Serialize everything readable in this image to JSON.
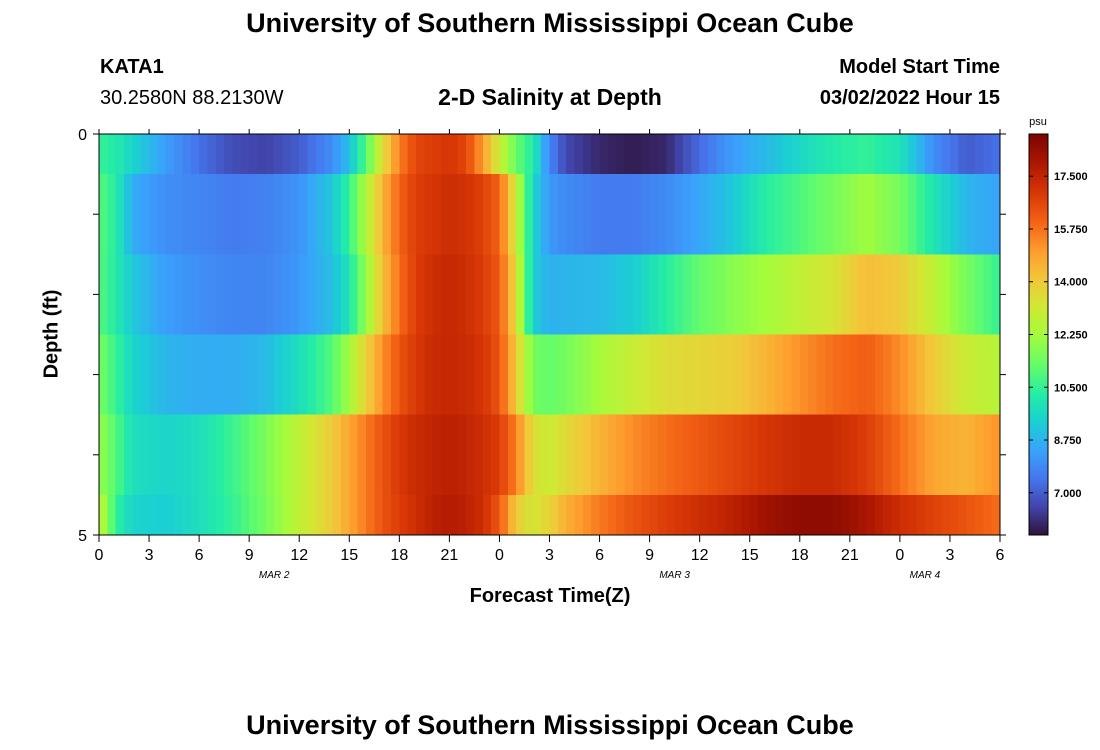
{
  "page": {
    "title": "University of Southern Mississippi Ocean Cube",
    "footer_title": "University of Southern Mississippi Ocean Cube"
  },
  "header": {
    "station": "KATA1",
    "coords": "30.2580N  88.2130W",
    "subtitle": "2-D Salinity at Depth",
    "model_start_label": "Model Start Time",
    "model_start_value": "03/02/2022 Hour 15"
  },
  "chart_data": {
    "type": "heatmap",
    "title": "2-D Salinity at Depth",
    "xlabel": "Forecast Time(Z)",
    "ylabel": "Depth (ft)",
    "x_tick_labels": [
      "0",
      "3",
      "6",
      "9",
      "12",
      "15",
      "18",
      "21",
      "0",
      "3",
      "6",
      "9",
      "12",
      "15",
      "18",
      "21",
      "0",
      "3",
      "6"
    ],
    "date_labels": [
      {
        "text": "MAR 2",
        "at_tick": 3.5
      },
      {
        "text": "MAR 3",
        "at_tick": 11.5
      },
      {
        "text": "MAR 4",
        "at_tick": 16.5
      }
    ],
    "y_tick_labels": [
      "0",
      "5"
    ],
    "ylim": [
      0,
      5
    ],
    "x_hours": [
      0,
      54
    ],
    "colorbar": {
      "unit": "psu",
      "tick_labels": [
        "7.000",
        "8.750",
        "10.500",
        "12.250",
        "14.000",
        "15.750",
        "17.500"
      ],
      "tick_values": [
        7.0,
        8.75,
        10.5,
        12.25,
        14.0,
        15.75,
        17.5
      ],
      "range": [
        5.6,
        18.9
      ]
    },
    "rows": [
      {
        "depth_range": [
          0,
          0.5
        ],
        "keyframes": [
          [
            0,
            10.5
          ],
          [
            1,
            10.2
          ],
          [
            2,
            9.5
          ],
          [
            4,
            8.3
          ],
          [
            6,
            7.4
          ],
          [
            8,
            6.7
          ],
          [
            10,
            6.5
          ],
          [
            12,
            7.0
          ],
          [
            14,
            8.0
          ],
          [
            15,
            9.0
          ],
          [
            16,
            11.0
          ],
          [
            17,
            13.5
          ],
          [
            18,
            15.5
          ],
          [
            19,
            16.6
          ],
          [
            20,
            16.8
          ],
          [
            21,
            17.0
          ],
          [
            22,
            16.6
          ],
          [
            23,
            15.0
          ],
          [
            24,
            13.0
          ],
          [
            25,
            11.3
          ],
          [
            26,
            10.2
          ],
          [
            27,
            7.8
          ],
          [
            28,
            6.6
          ],
          [
            30,
            6.0
          ],
          [
            32,
            5.8
          ],
          [
            34,
            6.0
          ],
          [
            36,
            7.3
          ],
          [
            38,
            8.3
          ],
          [
            40,
            8.9
          ],
          [
            42,
            9.6
          ],
          [
            44,
            10.2
          ],
          [
            46,
            10.5
          ],
          [
            48,
            9.9
          ],
          [
            50,
            8.0
          ],
          [
            52,
            7.0
          ],
          [
            54,
            7.4
          ]
        ]
      },
      {
        "depth_range": [
          0.5,
          1.5
        ],
        "keyframes": [
          [
            0,
            11.0
          ],
          [
            1,
            10.3
          ],
          [
            2,
            8.6
          ],
          [
            4,
            8.0
          ],
          [
            6,
            7.8
          ],
          [
            8,
            7.6
          ],
          [
            10,
            7.7
          ],
          [
            12,
            8.1
          ],
          [
            14,
            9.2
          ],
          [
            15,
            10.5
          ],
          [
            16,
            12.5
          ],
          [
            17,
            14.5
          ],
          [
            18,
            16.0
          ],
          [
            19,
            16.8
          ],
          [
            20,
            17.0
          ],
          [
            21,
            17.2
          ],
          [
            22,
            17.1
          ],
          [
            23,
            16.7
          ],
          [
            24,
            16.0
          ],
          [
            25,
            13.0
          ],
          [
            26,
            9.5
          ],
          [
            27,
            8.2
          ],
          [
            28,
            7.9
          ],
          [
            30,
            7.6
          ],
          [
            32,
            7.6
          ],
          [
            34,
            7.9
          ],
          [
            36,
            8.5
          ],
          [
            38,
            9.2
          ],
          [
            40,
            10.3
          ],
          [
            42,
            10.9
          ],
          [
            44,
            11.5
          ],
          [
            46,
            12.2
          ],
          [
            48,
            11.5
          ],
          [
            50,
            10.0
          ],
          [
            52,
            8.8
          ],
          [
            54,
            8.4
          ]
        ]
      },
      {
        "depth_range": [
          1.5,
          2.5
        ],
        "keyframes": [
          [
            0,
            11.0
          ],
          [
            1,
            10.2
          ],
          [
            2,
            9.2
          ],
          [
            4,
            8.3
          ],
          [
            6,
            8.0
          ],
          [
            8,
            7.8
          ],
          [
            10,
            7.8
          ],
          [
            12,
            8.2
          ],
          [
            14,
            9.0
          ],
          [
            15,
            10.0
          ],
          [
            16,
            12.0
          ],
          [
            17,
            14.2
          ],
          [
            18,
            15.8
          ],
          [
            19,
            16.8
          ],
          [
            20,
            17.2
          ],
          [
            21,
            17.4
          ],
          [
            22,
            17.2
          ],
          [
            23,
            16.8
          ],
          [
            24,
            16.2
          ],
          [
            25,
            13.5
          ],
          [
            26,
            9.3
          ],
          [
            27,
            8.7
          ],
          [
            28,
            8.8
          ],
          [
            30,
            8.9
          ],
          [
            32,
            9.3
          ],
          [
            34,
            10.3
          ],
          [
            36,
            11.2
          ],
          [
            38,
            11.8
          ],
          [
            40,
            12.3
          ],
          [
            42,
            12.8
          ],
          [
            44,
            13.3
          ],
          [
            46,
            14.3
          ],
          [
            48,
            14.0
          ],
          [
            50,
            12.8
          ],
          [
            52,
            11.5
          ],
          [
            54,
            10.5
          ]
        ]
      },
      {
        "depth_range": [
          2.5,
          3.5
        ],
        "keyframes": [
          [
            0,
            11.5
          ],
          [
            1,
            10.6
          ],
          [
            2,
            9.5
          ],
          [
            4,
            8.8
          ],
          [
            6,
            8.6
          ],
          [
            8,
            8.6
          ],
          [
            10,
            8.9
          ],
          [
            12,
            9.8
          ],
          [
            14,
            11.0
          ],
          [
            15,
            12.3
          ],
          [
            16,
            13.8
          ],
          [
            17,
            15.2
          ],
          [
            18,
            16.3
          ],
          [
            19,
            16.9
          ],
          [
            20,
            17.3
          ],
          [
            21,
            17.4
          ],
          [
            22,
            17.3
          ],
          [
            23,
            17.0
          ],
          [
            24,
            16.3
          ],
          [
            25,
            14.0
          ],
          [
            26,
            11.5
          ],
          [
            27,
            11.2
          ],
          [
            28,
            11.5
          ],
          [
            30,
            12.3
          ],
          [
            32,
            13.0
          ],
          [
            34,
            13.5
          ],
          [
            36,
            13.7
          ],
          [
            38,
            13.9
          ],
          [
            40,
            14.5
          ],
          [
            42,
            15.2
          ],
          [
            44,
            15.8
          ],
          [
            46,
            16.1
          ],
          [
            48,
            15.3
          ],
          [
            50,
            14.0
          ],
          [
            52,
            13.0
          ],
          [
            54,
            12.6
          ]
        ]
      },
      {
        "depth_range": [
          3.5,
          4.5
        ],
        "keyframes": [
          [
            0,
            12.0
          ],
          [
            1,
            11.0
          ],
          [
            2,
            9.8
          ],
          [
            4,
            9.5
          ],
          [
            6,
            9.8
          ],
          [
            8,
            10.6
          ],
          [
            10,
            11.6
          ],
          [
            12,
            12.8
          ],
          [
            14,
            14.0
          ],
          [
            15,
            14.8
          ],
          [
            16,
            15.6
          ],
          [
            17,
            16.3
          ],
          [
            18,
            16.9
          ],
          [
            19,
            17.3
          ],
          [
            20,
            17.5
          ],
          [
            21,
            17.6
          ],
          [
            22,
            17.5
          ],
          [
            23,
            17.2
          ],
          [
            24,
            16.8
          ],
          [
            25,
            15.5
          ],
          [
            26,
            13.5
          ],
          [
            27,
            13.0
          ],
          [
            28,
            13.6
          ],
          [
            30,
            14.5
          ],
          [
            32,
            15.3
          ],
          [
            34,
            15.8
          ],
          [
            36,
            16.2
          ],
          [
            38,
            16.6
          ],
          [
            40,
            17.0
          ],
          [
            42,
            17.3
          ],
          [
            44,
            17.3
          ],
          [
            46,
            16.8
          ],
          [
            48,
            15.8
          ],
          [
            50,
            14.8
          ],
          [
            52,
            14.5
          ],
          [
            54,
            15.2
          ]
        ]
      },
      {
        "depth_range": [
          4.5,
          5.0
        ],
        "keyframes": [
          [
            0,
            13.0
          ],
          [
            1,
            10.5
          ],
          [
            2,
            9.5
          ],
          [
            4,
            9.3
          ],
          [
            6,
            9.8
          ],
          [
            8,
            10.5
          ],
          [
            10,
            11.5
          ],
          [
            12,
            12.8
          ],
          [
            14,
            14.0
          ],
          [
            15,
            14.8
          ],
          [
            16,
            15.6
          ],
          [
            17,
            16.3
          ],
          [
            18,
            16.8
          ],
          [
            19,
            17.2
          ],
          [
            20,
            17.6
          ],
          [
            21,
            17.8
          ],
          [
            22,
            17.6
          ],
          [
            23,
            17.2
          ],
          [
            24,
            16.2
          ],
          [
            25,
            14.0
          ],
          [
            26,
            13.2
          ],
          [
            27,
            13.8
          ],
          [
            28,
            14.6
          ],
          [
            30,
            15.6
          ],
          [
            32,
            16.3
          ],
          [
            34,
            16.8
          ],
          [
            36,
            17.2
          ],
          [
            38,
            17.6
          ],
          [
            40,
            18.2
          ],
          [
            42,
            18.5
          ],
          [
            44,
            18.5
          ],
          [
            46,
            18.0
          ],
          [
            48,
            17.2
          ],
          [
            50,
            16.7
          ],
          [
            52,
            16.3
          ],
          [
            54,
            15.8
          ]
        ]
      }
    ],
    "colormap": [
      [
        0.0,
        "#30123b"
      ],
      [
        0.07,
        "#4145ab"
      ],
      [
        0.14,
        "#4675ed"
      ],
      [
        0.21,
        "#39a2fc"
      ],
      [
        0.28,
        "#1bcfd4"
      ],
      [
        0.35,
        "#24eca6"
      ],
      [
        0.42,
        "#61fc6c"
      ],
      [
        0.5,
        "#a4fc3b"
      ],
      [
        0.57,
        "#d1e834"
      ],
      [
        0.64,
        "#f3c63a"
      ],
      [
        0.71,
        "#fe9b2d"
      ],
      [
        0.78,
        "#f36315"
      ],
      [
        0.85,
        "#d93806"
      ],
      [
        0.92,
        "#b11901"
      ],
      [
        1.0,
        "#7a0402"
      ]
    ]
  }
}
